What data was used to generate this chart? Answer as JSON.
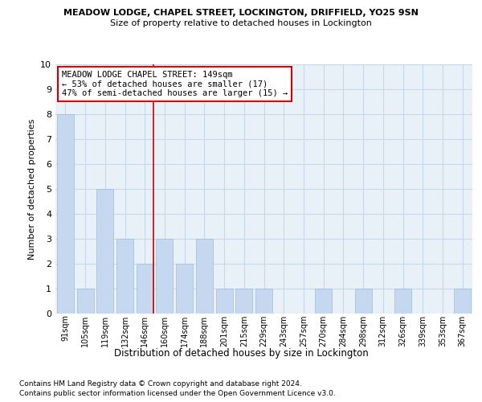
{
  "title": "MEADOW LODGE, CHAPEL STREET, LOCKINGTON, DRIFFIELD, YO25 9SN",
  "subtitle": "Size of property relative to detached houses in Lockington",
  "xlabel": "Distribution of detached houses by size in Lockington",
  "ylabel": "Number of detached properties",
  "categories": [
    "91sqm",
    "105sqm",
    "119sqm",
    "132sqm",
    "146sqm",
    "160sqm",
    "174sqm",
    "188sqm",
    "201sqm",
    "215sqm",
    "229sqm",
    "243sqm",
    "257sqm",
    "270sqm",
    "284sqm",
    "298sqm",
    "312sqm",
    "326sqm",
    "339sqm",
    "353sqm",
    "367sqm"
  ],
  "values": [
    8,
    1,
    5,
    3,
    2,
    3,
    2,
    3,
    1,
    1,
    1,
    0,
    0,
    1,
    0,
    1,
    0,
    1,
    0,
    0,
    1
  ],
  "bar_color": "#c5d8f0",
  "bar_edgecolor": "#a0bcd8",
  "grid_color": "#c8d8ea",
  "background_color": "#e8f0f8",
  "vline_color": "#cc0000",
  "vline_x_index": 4.45,
  "annotation_text": "MEADOW LODGE CHAPEL STREET: 149sqm\n← 53% of detached houses are smaller (17)\n47% of semi-detached houses are larger (15) →",
  "annotation_box_color": "#ffffff",
  "annotation_box_edgecolor": "#cc0000",
  "ylim": [
    0,
    10
  ],
  "yticks": [
    0,
    1,
    2,
    3,
    4,
    5,
    6,
    7,
    8,
    9,
    10
  ],
  "footnote1": "Contains HM Land Registry data © Crown copyright and database right 2024.",
  "footnote2": "Contains public sector information licensed under the Open Government Licence v3.0."
}
